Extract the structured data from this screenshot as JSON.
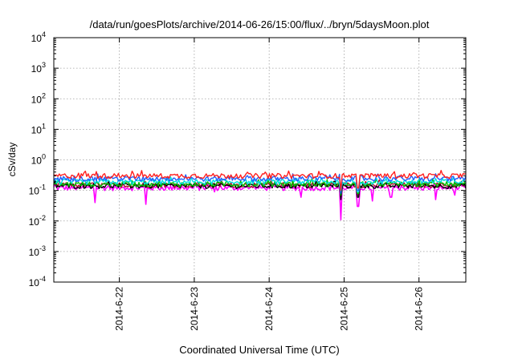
{
  "chart_data": {
    "type": "line",
    "title": "/data/run/goesPlots/archive/2014-06-26/15:00/flux/../bryn/5daysMoon.plot",
    "xlabel": "Coordinated Universal Time (UTC)",
    "ylabel": "cSv/day",
    "y_scale": "log",
    "ylim": [
      "1e-4",
      "1e4"
    ],
    "xlim": [
      "2014-06-21T03:00",
      "2014-06-26T15:00"
    ],
    "grid": true,
    "x_ticks": [
      {
        "date": "2014-06-22T00:00",
        "label": "2014-6-22"
      },
      {
        "date": "2014-06-23T00:00",
        "label": "2014-6-23"
      },
      {
        "date": "2014-06-24T00:00",
        "label": "2014-6-24"
      },
      {
        "date": "2014-06-25T00:00",
        "label": "2014-6-25"
      },
      {
        "date": "2014-06-26T00:00",
        "label": "2014-6-26"
      }
    ],
    "y_ticks": [
      {
        "value": 0.0001,
        "base": "10",
        "exp": "-4"
      },
      {
        "value": 0.001,
        "base": "10",
        "exp": "-3"
      },
      {
        "value": 0.01,
        "base": "10",
        "exp": "-2"
      },
      {
        "value": 0.1,
        "base": "10",
        "exp": "-1"
      },
      {
        "value": 1,
        "base": "10",
        "exp": "0"
      },
      {
        "value": 10,
        "base": "10",
        "exp": "1"
      },
      {
        "value": 100,
        "base": "10",
        "exp": "2"
      },
      {
        "value": 1000,
        "base": "10",
        "exp": "3"
      },
      {
        "value": 10000,
        "base": "10",
        "exp": "4"
      }
    ],
    "series": [
      {
        "color": "#ff00ff",
        "base": 0.12,
        "dips": [
          [
            0.55,
            0.04
          ],
          [
            1.23,
            0.035
          ],
          [
            2.15,
            0.09
          ],
          [
            3.3,
            0.06
          ],
          [
            3.83,
            0.011
          ],
          [
            4.06,
            0.03
          ],
          [
            4.25,
            0.045
          ],
          [
            4.5,
            0.06
          ],
          [
            5.1,
            0.05
          ],
          [
            5.35,
            0.07
          ]
        ]
      },
      {
        "color": "#b01030",
        "base": 0.15,
        "dips": [
          [
            3.83,
            0.06
          ],
          [
            4.06,
            0.07
          ]
        ]
      },
      {
        "color": "#000000",
        "base": 0.14,
        "dips": [
          [
            3.83,
            0.05
          ],
          [
            4.06,
            0.06
          ]
        ]
      },
      {
        "color": "#00c000",
        "base": 0.16,
        "dips": [
          [
            3.83,
            0.07
          ],
          [
            4.06,
            0.08
          ]
        ]
      },
      {
        "color": "#00e0e0",
        "base": 0.19,
        "dips": [
          [
            3.83,
            0.08
          ],
          [
            4.06,
            0.09
          ]
        ]
      },
      {
        "color": "#2060ff",
        "base": 0.24,
        "dips": [
          [
            3.83,
            0.08
          ],
          [
            4.06,
            0.1
          ]
        ]
      },
      {
        "color": "#ff2020",
        "base": 0.3,
        "dips": [
          [
            3.83,
            0.1
          ],
          [
            4.06,
            0.12
          ]
        ]
      }
    ]
  }
}
